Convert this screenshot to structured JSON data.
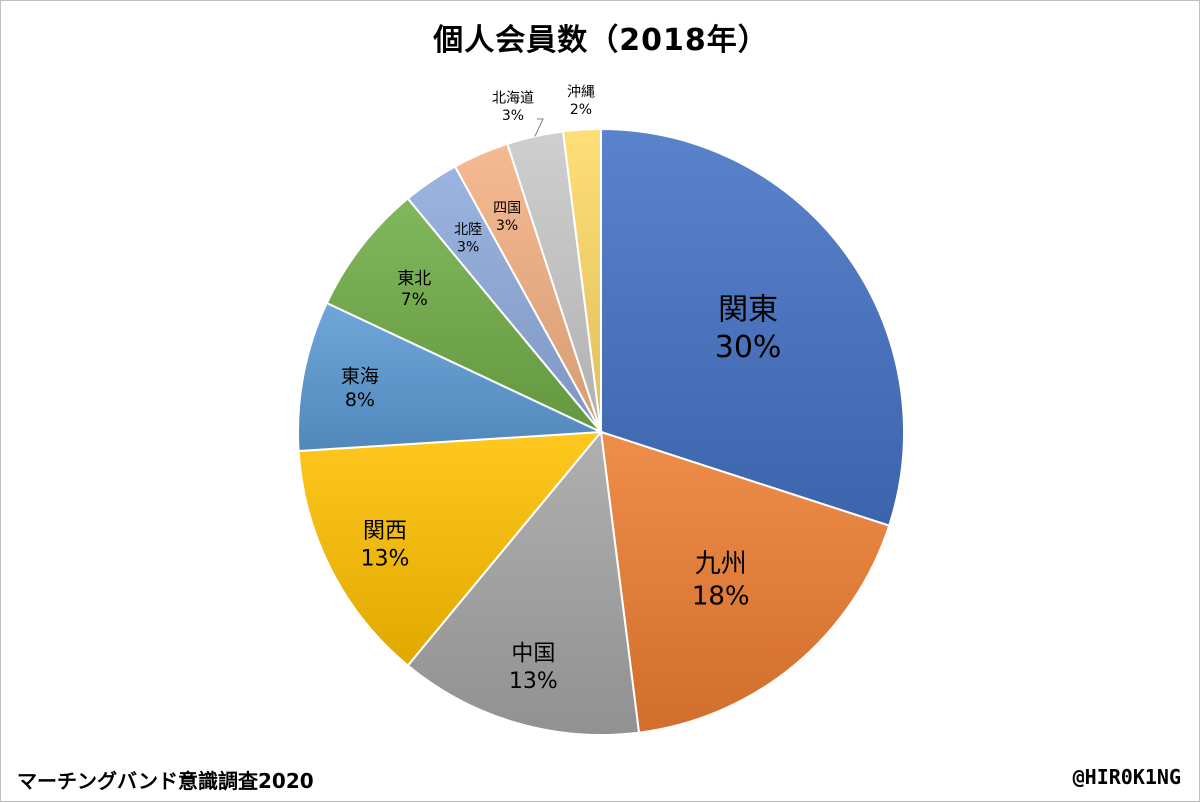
{
  "footer": {
    "survey_name": "マーチングバンド意識調査2020",
    "author": "@HIR0K1NG"
  },
  "chart_data": {
    "type": "pie",
    "title": "個人会員数（2018年）",
    "slices": [
      {
        "label": "関東",
        "value": 30,
        "display": "30%",
        "color": "#4472C4"
      },
      {
        "label": "九州",
        "value": 18,
        "display": "18%",
        "color": "#ED7D31"
      },
      {
        "label": "中国",
        "value": 13,
        "display": "13%",
        "color": "#A5A5A5"
      },
      {
        "label": "関西",
        "value": 13,
        "display": "13%",
        "color": "#FFC000"
      },
      {
        "label": "東海",
        "value": 8,
        "display": "8%",
        "color": "#5B9BD5"
      },
      {
        "label": "東北",
        "value": 7,
        "display": "7%",
        "color": "#70AD47"
      },
      {
        "label": "北陸",
        "value": 3,
        "display": "3%",
        "color": "#8FAADC"
      },
      {
        "label": "四国",
        "value": 3,
        "display": "3%",
        "color": "#F4B183"
      },
      {
        "label": "北海道",
        "value": 3,
        "display": "3%",
        "color": "#C9C9C9"
      },
      {
        "label": "沖縄",
        "value": 2,
        "display": "2%",
        "color": "#FFD966"
      }
    ],
    "legend": "none",
    "data_labels": "category-and-percent"
  }
}
